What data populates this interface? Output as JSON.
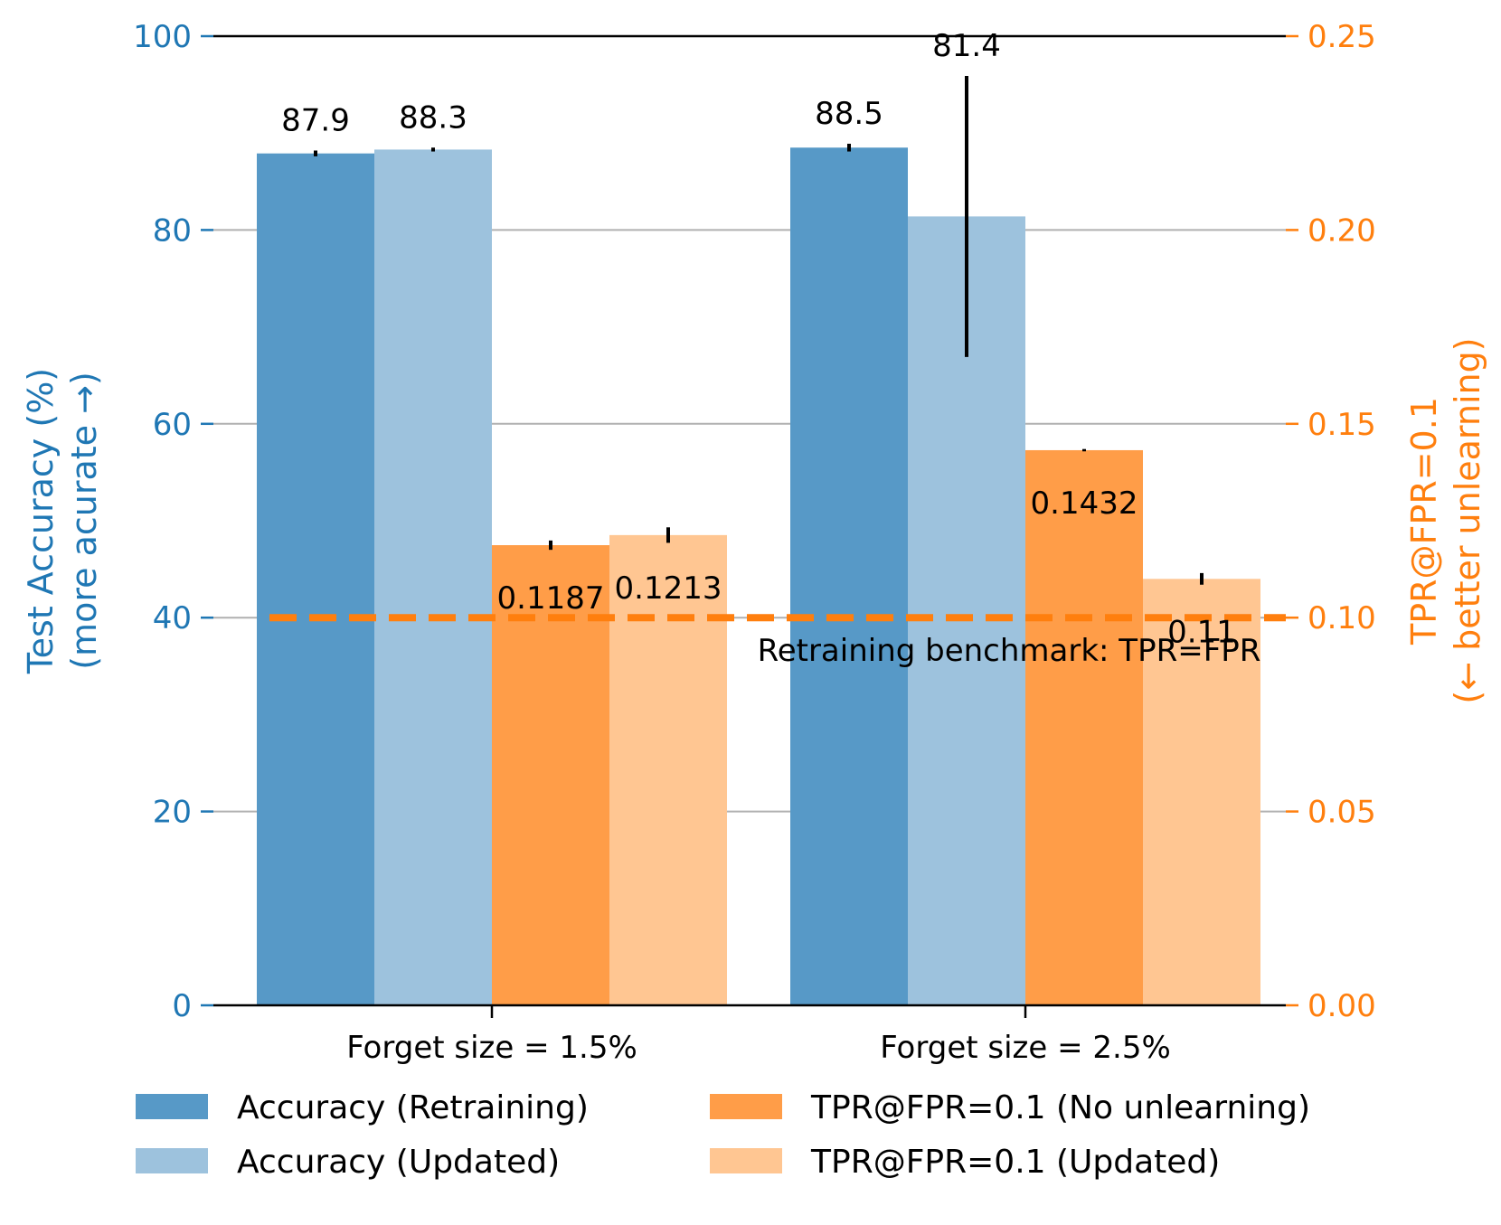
{
  "chart_data": {
    "type": "bar",
    "categories": [
      "Forget size = 1.5%",
      "Forget size = 2.5%"
    ],
    "left_axis": {
      "label_line1": "Test Accuracy (%)",
      "label_line2": "(more acurate →)",
      "ylim": [
        0,
        100
      ],
      "ticks": [
        "0",
        "20",
        "40",
        "60",
        "80",
        "100"
      ],
      "color": "#1f77b4"
    },
    "right_axis": {
      "label_line1": "TPR@FPR=0.1",
      "label_line2": "(← better unlearning)",
      "ylim": [
        0,
        0.25
      ],
      "ticks": [
        "0.00",
        "0.05",
        "0.10",
        "0.15",
        "0.20",
        "0.25"
      ],
      "color": "#ff7f0e"
    },
    "grid": true,
    "series": [
      {
        "name": "Accuracy (Retraining)",
        "axis": "left",
        "color": "#5799c7",
        "values": [
          87.9,
          88.5
        ],
        "errors": [
          0.3,
          0.4
        ],
        "labels": [
          "87.9",
          "88.5"
        ]
      },
      {
        "name": "Accuracy (Updated)",
        "axis": "left",
        "color": "#9dc2dd",
        "values": [
          88.3,
          81.4
        ],
        "errors": [
          0.2,
          14.5
        ],
        "labels": [
          "88.3",
          "81.4"
        ]
      },
      {
        "name": "TPR@FPR=0.1 (No unlearning)",
        "axis": "right",
        "color": "#ff9d48",
        "values": [
          0.1187,
          0.1432
        ],
        "errors": [
          0.0012,
          0.0003
        ],
        "labels": [
          "0.1187",
          "0.1432"
        ]
      },
      {
        "name": "TPR@FPR=0.1 (Updated)",
        "axis": "right",
        "color": "#ffc692",
        "values": [
          0.1213,
          0.11
        ],
        "errors": [
          0.002,
          0.0015
        ],
        "labels": [
          "0.1213",
          "0.11"
        ]
      }
    ],
    "reference_line": {
      "axis": "right",
      "value": 0.1,
      "label": "Retraining benchmark: TPR=FPR",
      "color": "#ff7f0e",
      "style": "dashed"
    },
    "legend": {
      "placement": "bottom",
      "columns": 2
    }
  }
}
